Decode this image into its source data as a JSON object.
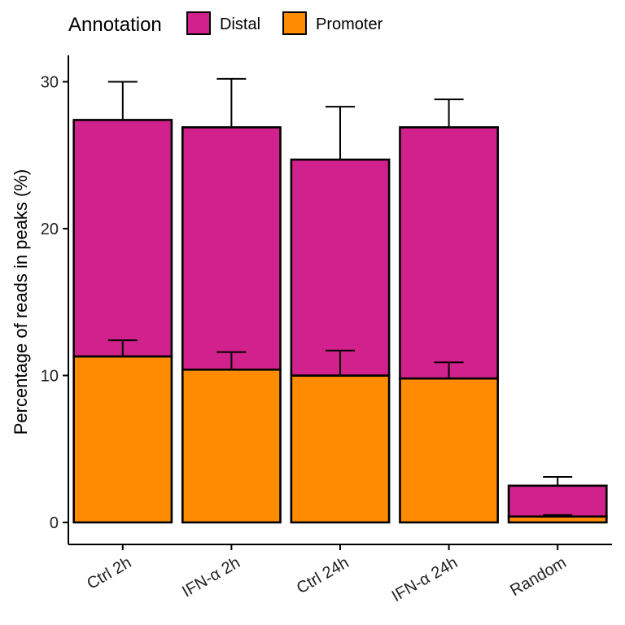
{
  "chart_data": {
    "type": "bar",
    "stacked": true,
    "categories": [
      "Ctrl 2h",
      "IFN-α 2h",
      "Ctrl 24h",
      "IFN-α 24h",
      "Random"
    ],
    "series": [
      {
        "name": "Promoter",
        "color": "#FF8C00",
        "values": [
          11.3,
          10.4,
          10.0,
          9.8,
          0.4
        ],
        "error_upper": [
          12.4,
          11.6,
          11.7,
          10.9,
          0.5
        ]
      },
      {
        "name": "Distal",
        "color": "#D0218C",
        "values": [
          16.1,
          16.5,
          14.7,
          17.1,
          2.1
        ],
        "error_upper": [
          30.0,
          30.2,
          28.3,
          28.8,
          3.1
        ]
      }
    ],
    "ylabel": "Percentage of reads in peaks (%)",
    "xlabel": "",
    "ylim": [
      -1.5,
      31.8
    ],
    "yticks": [
      0,
      10,
      20,
      30
    ],
    "grid": false,
    "legend": {
      "title": "Annotation",
      "position": "top",
      "entries": [
        {
          "name": "Distal",
          "color": "#D0218C"
        },
        {
          "name": "Promoter",
          "color": "#FF8C00"
        }
      ]
    }
  }
}
